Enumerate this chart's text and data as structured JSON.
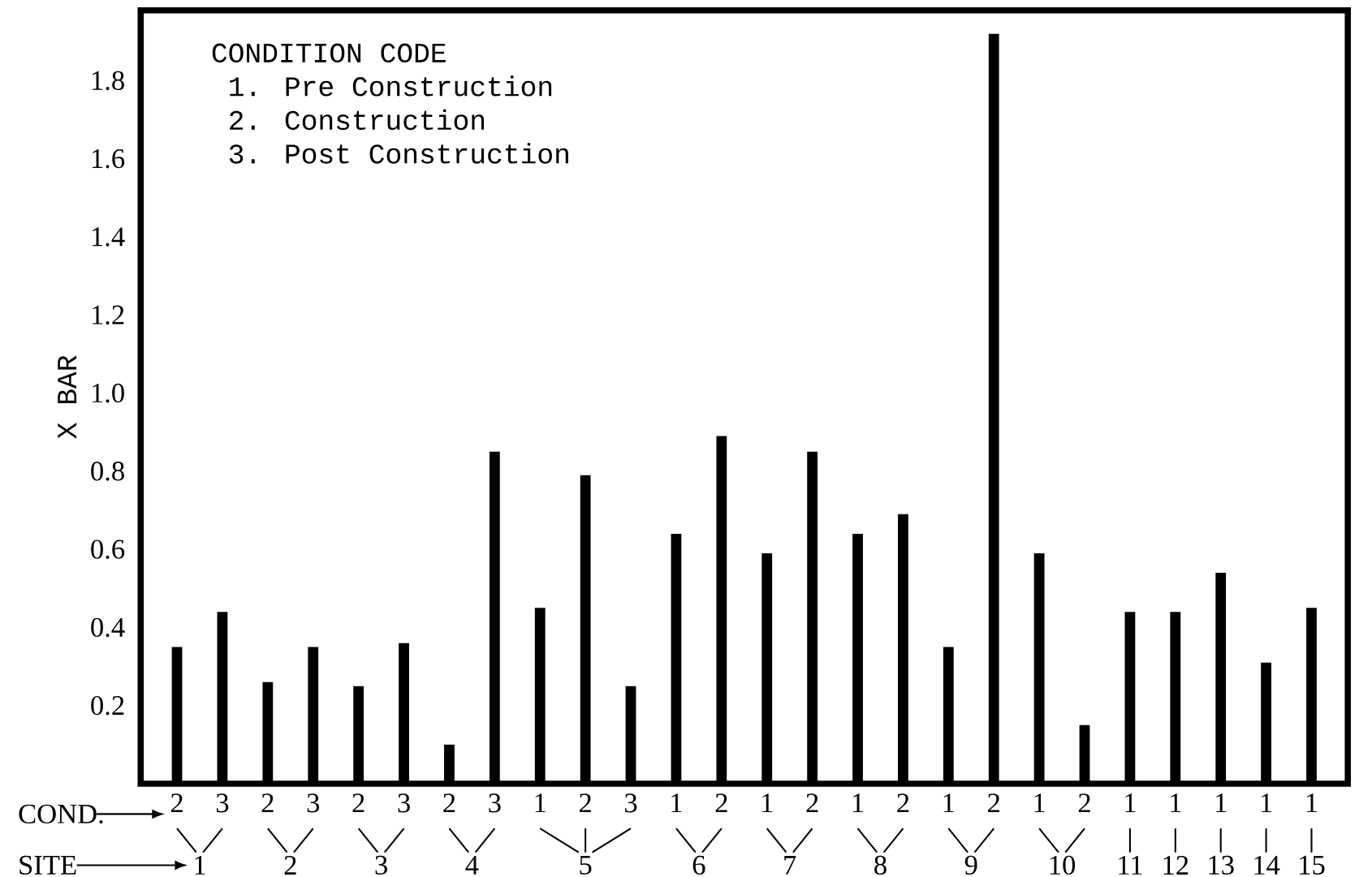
{
  "chart_data": {
    "type": "bar",
    "ylabel": "X BAR",
    "categories": [
      "2",
      "3",
      "2",
      "3",
      "2",
      "3",
      "2",
      "3",
      "1",
      "2",
      "3",
      "1",
      "2",
      "1",
      "2",
      "1",
      "2",
      "1",
      "2",
      "1",
      "2",
      "1",
      "1",
      "1",
      "1",
      "1"
    ],
    "values": [
      0.35,
      0.44,
      0.26,
      0.35,
      0.25,
      0.36,
      0.1,
      0.85,
      0.45,
      0.79,
      0.25,
      0.64,
      0.89,
      0.59,
      0.85,
      0.64,
      0.69,
      0.35,
      1.92,
      0.59,
      0.15,
      0.44,
      0.44,
      0.54,
      0.31,
      0.45
    ],
    "color": "#000000",
    "ylim": [
      0,
      1.98
    ],
    "yticks": [
      {
        "value": 0.2,
        "label": "0.2"
      },
      {
        "value": 0.4,
        "label": "0.4"
      },
      {
        "value": 0.6,
        "label": "0.6"
      },
      {
        "value": 0.8,
        "label": "0.8"
      },
      {
        "value": 1.0,
        "label": "1.0"
      },
      {
        "value": 1.2,
        "label": "1.2"
      },
      {
        "value": 1.4,
        "label": "1.4"
      },
      {
        "value": 1.6,
        "label": "1.6"
      },
      {
        "value": 1.8,
        "label": "1.8"
      }
    ],
    "annotations": [
      "CONDITION CODE",
      "1. Pre Construction",
      "2. Construction",
      "3. Post Construction",
      "COND.",
      "SITE",
      "1",
      "2",
      "3",
      "4",
      "5",
      "6",
      "7",
      "8",
      "9",
      "10",
      "11",
      "12",
      "13",
      "14",
      "15"
    ]
  }
}
